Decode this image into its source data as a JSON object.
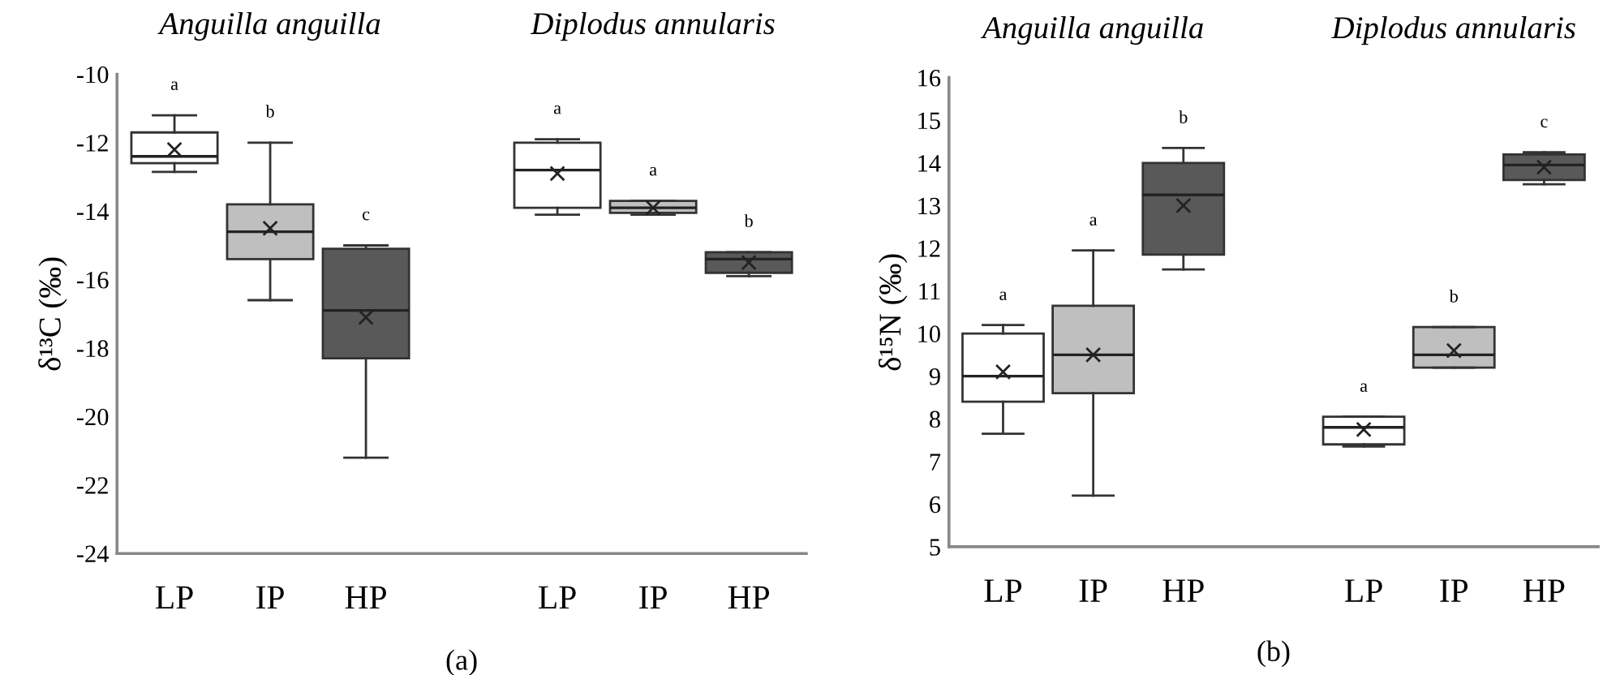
{
  "chart_data": [
    {
      "type": "box",
      "ylabel": "δ¹³C (‰)",
      "categories": [
        "LP",
        "IP",
        "HP",
        null,
        "LP",
        "IP",
        "HP"
      ],
      "boxes": [
        {
          "low": -12.85,
          "q1": -12.6,
          "median": -12.4,
          "q3": -11.7,
          "high": -11.2,
          "mean": -12.2
        },
        {
          "low": -16.6,
          "q1": -15.4,
          "median": -14.6,
          "q3": -13.8,
          "high": -12.0,
          "mean": -14.5
        },
        {
          "low": -21.2,
          "q1": -18.3,
          "median": -16.9,
          "q3": -15.1,
          "high": -15.0,
          "mean": -17.1
        },
        null,
        {
          "low": -14.1,
          "q1": -13.9,
          "median": -12.8,
          "q3": -12.0,
          "high": -11.9,
          "mean": -12.9
        },
        {
          "low": -14.1,
          "q1": -14.05,
          "median": -13.9,
          "q3": -13.7,
          "high": -13.7,
          "mean": -13.9
        },
        {
          "low": -15.9,
          "q1": -15.8,
          "median": -15.4,
          "q3": -15.2,
          "high": -15.2,
          "mean": -15.5
        }
      ],
      "colors": [
        "#ffffff",
        "#bfbfbf",
        "#595959",
        null,
        "#ffffff",
        "#bfbfbf",
        "#595959"
      ],
      "ylim": [
        -24,
        -10
      ],
      "yticks": [
        -24,
        -22,
        -20,
        -18,
        -16,
        -14,
        -12,
        -10
      ],
      "grid": false,
      "marker": "cross",
      "annotations": [
        "Anguilla anguilla",
        "Diplodus annularis",
        "a",
        "b",
        "c",
        "a",
        "a",
        "b",
        "(a)"
      ]
    },
    {
      "type": "box",
      "ylabel": "δ¹⁵N (‰)",
      "categories": [
        "LP",
        "IP",
        "HP",
        null,
        "LP",
        "IP",
        "HP"
      ],
      "boxes": [
        {
          "low": 7.65,
          "q1": 8.4,
          "median": 9.0,
          "q3": 10.0,
          "high": 10.2,
          "mean": 9.1
        },
        {
          "low": 6.2,
          "q1": 8.6,
          "median": 9.5,
          "q3": 10.65,
          "high": 11.95,
          "mean": 9.5
        },
        {
          "low": 11.5,
          "q1": 11.85,
          "median": 13.25,
          "q3": 14.0,
          "high": 14.35,
          "mean": 13.0
        },
        null,
        {
          "low": 7.35,
          "q1": 7.4,
          "median": 7.8,
          "q3": 8.05,
          "high": 8.05,
          "mean": 7.75
        },
        {
          "low": 9.2,
          "q1": 9.2,
          "median": 9.5,
          "q3": 10.15,
          "high": 10.15,
          "mean": 9.6
        },
        {
          "low": 13.5,
          "q1": 13.6,
          "median": 13.95,
          "q3": 14.2,
          "high": 14.25,
          "mean": 13.9
        }
      ],
      "colors": [
        "#ffffff",
        "#bfbfbf",
        "#595959",
        null,
        "#ffffff",
        "#bfbfbf",
        "#595959"
      ],
      "ylim": [
        5,
        16
      ],
      "yticks": [
        5,
        6,
        7,
        8,
        9,
        10,
        11,
        12,
        13,
        14,
        15,
        16
      ],
      "grid": false,
      "marker": "cross",
      "annotations": [
        "Anguilla anguilla",
        "Diplodus annularis",
        "a",
        "a",
        "b",
        "a",
        "b",
        "c",
        "(b)"
      ]
    }
  ]
}
